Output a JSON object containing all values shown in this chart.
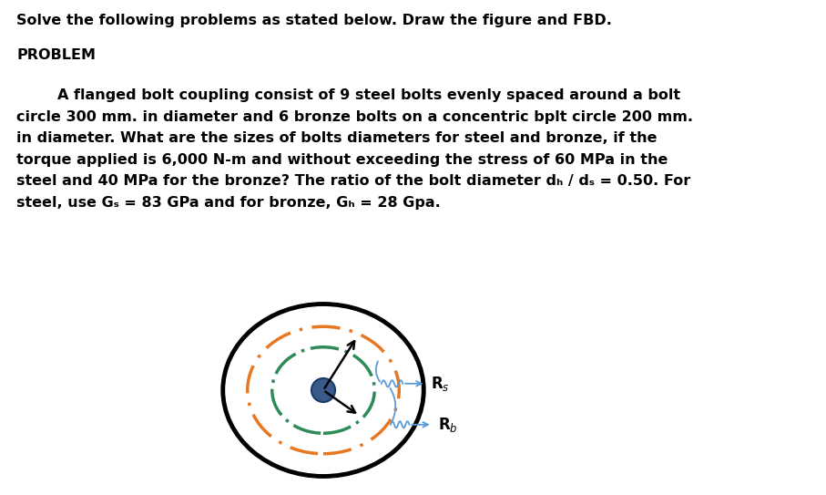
{
  "title_line1": "Solve the following problems as stated below. Draw the figure and FBD.",
  "title_line2": "PROBLEM",
  "problem_lines": [
    "        A flanged bolt coupling consist of 9 steel bolts evenly spaced around a bolt",
    "circle 300 mm. in diameter and 6 bronze bolts on a concentric bplt circle 200 mm.",
    "in diameter. What are the sizes of bolts diameters for steel and bronze, if the",
    "torque applied is 6,000 N-m and without exceeding the stress of 60 MPa in the",
    "steel and 40 MPa for the bronze? The ratio of the bolt diameter dₕ / dₛ = 0.50. For",
    "steel, use Gₛ = 83 GPa and for bronze, Gₕ = 28 Gpa."
  ],
  "bg_color": "#ffffff",
  "text_color": "#000000",
  "outer_circle_color": "#000000",
  "steel_circle_color": "#e87722",
  "bronze_circle_color": "#2e8b57",
  "center_circle_color": "#3a5a8a",
  "arrow_color": "#000000",
  "label_arrow_color": "#5b9bd5",
  "Rs_label": "R$_s$",
  "Rb_label": "R$_b$",
  "fig_width": 9.07,
  "fig_height": 5.43,
  "dpi": 100,
  "fontsize": 11.5,
  "title_fontsize": 11.5
}
